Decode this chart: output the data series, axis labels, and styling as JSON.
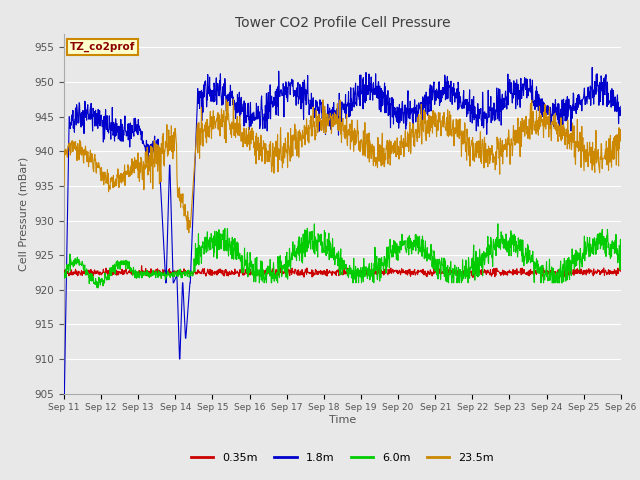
{
  "title": "Tower CO2 Profile Cell Pressure",
  "xlabel": "Time",
  "ylabel": "Cell Pressure (mBar)",
  "ylim": [
    905,
    957
  ],
  "yticks": [
    905,
    910,
    915,
    920,
    925,
    930,
    935,
    940,
    945,
    950,
    955
  ],
  "x_labels": [
    "Sep 11",
    "Sep 12",
    "Sep 13",
    "Sep 14",
    "Sep 15",
    "Sep 16",
    "Sep 17",
    "Sep 18",
    "Sep 19",
    "Sep 20",
    "Sep 21",
    "Sep 22",
    "Sep 23",
    "Sep 24",
    "Sep 25",
    "Sep 26"
  ],
  "n_points": 1500,
  "colors": {
    "0.35m": "#cc0000",
    "1.8m": "#0000cc",
    "6.0m": "#00cc00",
    "23.5m": "#cc8800"
  },
  "legend_label": "TZ_co2prof",
  "legend_bg": "#ffffcc",
  "legend_border": "#cc8800",
  "bg_color": "#e8e8e8",
  "plot_bg": "#e8e8e8",
  "grid_color": "#ffffff",
  "title_color": "#404040",
  "axis_label_color": "#555555"
}
